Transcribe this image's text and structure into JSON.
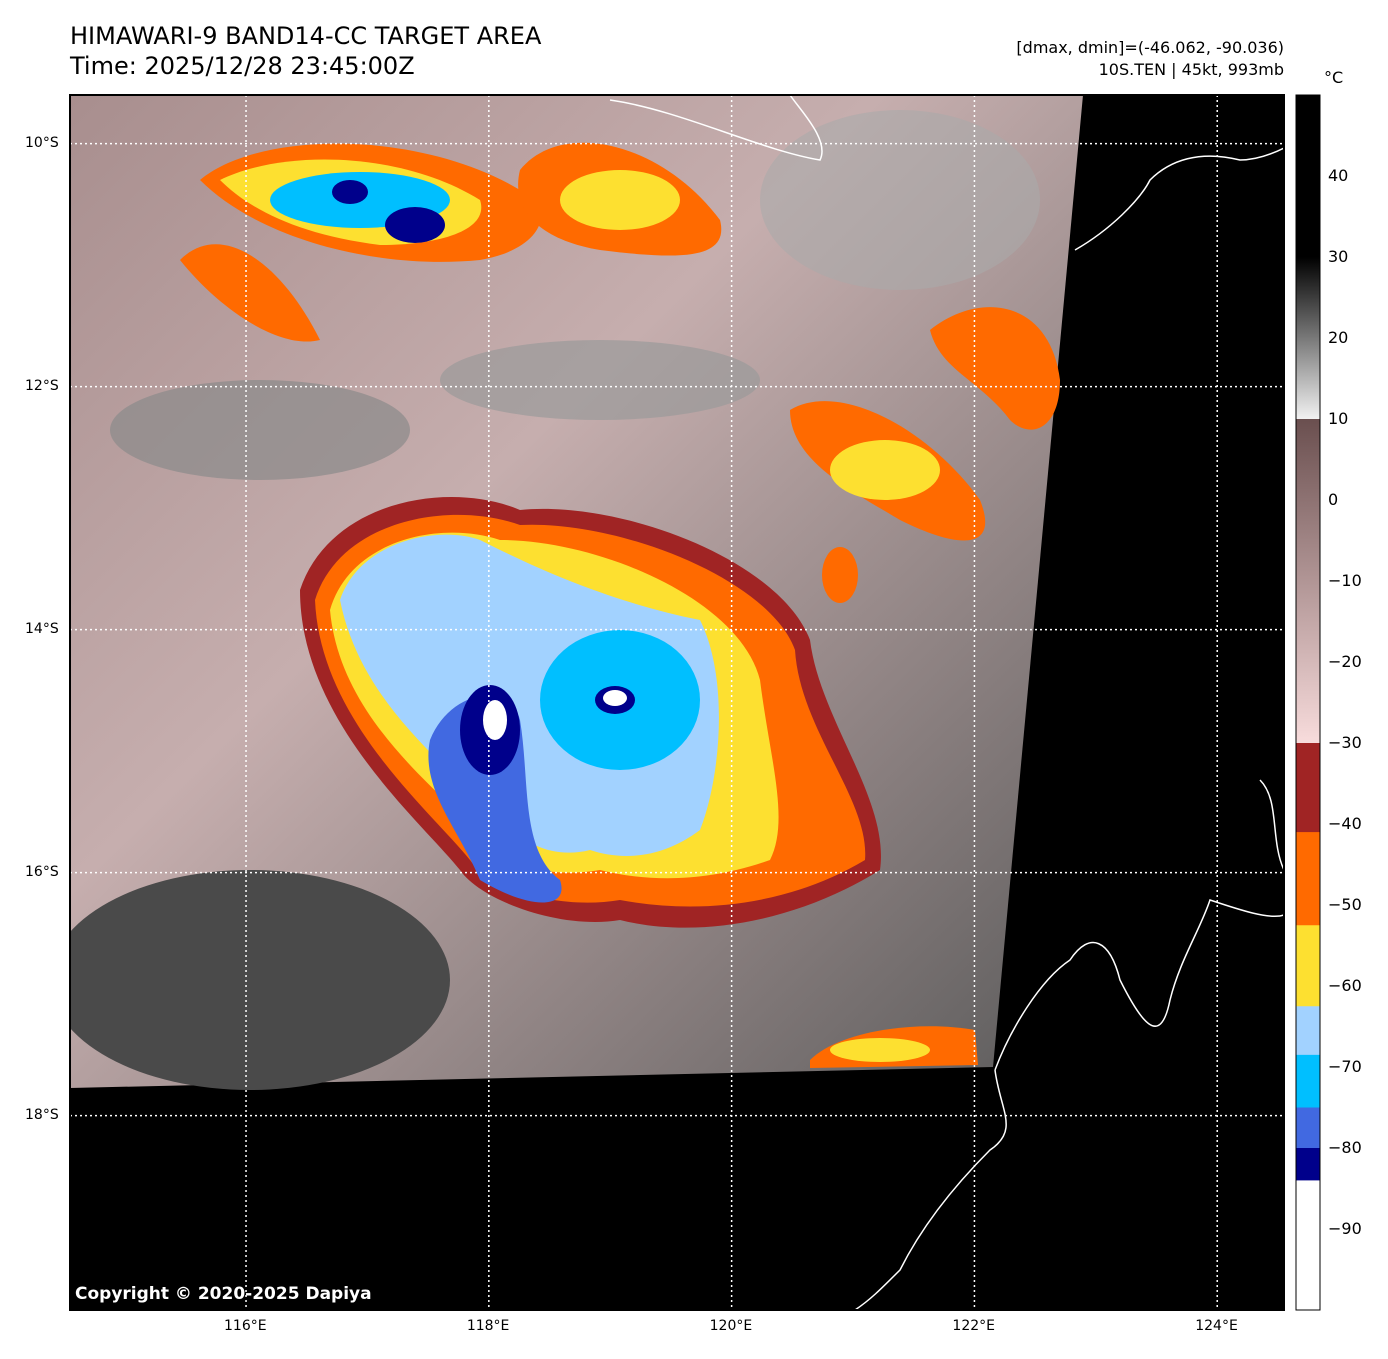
{
  "header": {
    "title_line1": "HIMAWARI-9 BAND14-CC TARGET AREA",
    "title_line2": "Time: 2025/12/28 23:45:00Z",
    "stats": "[dmax, dmin]=(-46.062, -90.036)",
    "storm_info": "10S.TEN | 45kt, 993mb"
  },
  "map": {
    "lon_range": [
      114.55,
      124.55
    ],
    "lat_range": [
      -9.6,
      -19.6
    ],
    "lon_ticks": [
      {
        "value": 116,
        "label": "116°E"
      },
      {
        "value": 118,
        "label": "118°E"
      },
      {
        "value": 120,
        "label": "120°E"
      },
      {
        "value": 122,
        "label": "122°E"
      },
      {
        "value": 124,
        "label": "124°E"
      }
    ],
    "lat_ticks": [
      {
        "value": -10,
        "label": "10°S"
      },
      {
        "value": -12,
        "label": "12°S"
      },
      {
        "value": -14,
        "label": "14°S"
      },
      {
        "value": -16,
        "label": "16°S"
      },
      {
        "value": -18,
        "label": "18°S"
      }
    ],
    "copyright": "Copyright © 2020-2025 Dapiya"
  },
  "colorbar": {
    "unit": "°C",
    "range": [
      -100,
      50
    ],
    "ticks": [
      {
        "value": 40,
        "label": "40"
      },
      {
        "value": 30,
        "label": "30"
      },
      {
        "value": 20,
        "label": "20"
      },
      {
        "value": 10,
        "label": "10"
      },
      {
        "value": 0,
        "label": "0"
      },
      {
        "value": -10,
        "label": "−10"
      },
      {
        "value": -20,
        "label": "−20"
      },
      {
        "value": -30,
        "label": "−30"
      },
      {
        "value": -40,
        "label": "−40"
      },
      {
        "value": -50,
        "label": "−50"
      },
      {
        "value": -60,
        "label": "−60"
      },
      {
        "value": -70,
        "label": "−70"
      },
      {
        "value": -80,
        "label": "−80"
      },
      {
        "value": -90,
        "label": "−90"
      }
    ],
    "segments": [
      {
        "from": 30,
        "to": 50,
        "color": "#000000",
        "color2": "#000000"
      },
      {
        "from": 10,
        "to": 30,
        "color": "#f2f2f2",
        "color2": "#000000"
      },
      {
        "from": -30,
        "to": 10,
        "color": "#f8dcdc",
        "color2": "#6a4f4f"
      },
      {
        "from": -41,
        "to": -30,
        "color": "#a02424",
        "color2": "#a02424"
      },
      {
        "from": -52.5,
        "to": -41,
        "color": "#ff6a00",
        "color2": "#ff6a00"
      },
      {
        "from": -62.5,
        "to": -52.5,
        "color": "#fde030",
        "color2": "#fde030"
      },
      {
        "from": -68.5,
        "to": -62.5,
        "color": "#a2d2ff",
        "color2": "#a2d2ff"
      },
      {
        "from": -75,
        "to": -68.5,
        "color": "#00bfff",
        "color2": "#00bfff"
      },
      {
        "from": -80,
        "to": -75,
        "color": "#4169e1",
        "color2": "#4169e1"
      },
      {
        "from": -84,
        "to": -80,
        "color": "#00008b",
        "color2": "#00008b"
      },
      {
        "from": -100,
        "to": -84,
        "color": "#ffffff",
        "color2": "#ffffff"
      }
    ]
  }
}
